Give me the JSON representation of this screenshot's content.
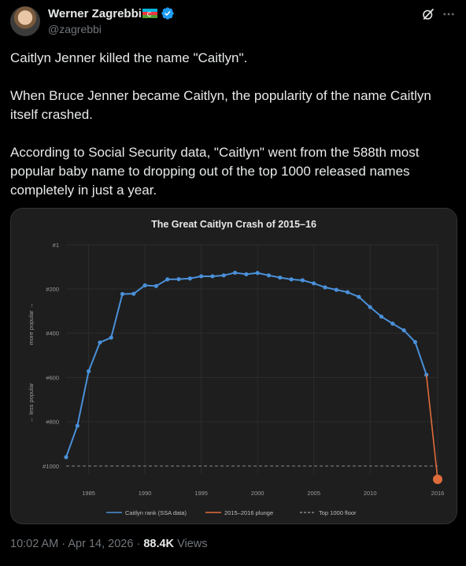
{
  "author": {
    "name": "Werner Zagrebbi",
    "handle": "@zagrebbi",
    "flag_icon": "azerbaijan-flag-icon",
    "verified_icon": "verified-badge-icon"
  },
  "header_icons": [
    "grok-icon",
    "more-icon"
  ],
  "post": {
    "paragraphs": [
      "Caitlyn Jenner killed the name \"Caitlyn\".",
      "When Bruce Jenner became Caitlyn, the popularity of the name Caitlyn itself crashed.",
      "According to Social Security data, \"Caitlyn\" went from the 588th most popular baby name to dropping out of the top 1000 released names completely in just a year."
    ]
  },
  "footer": {
    "time": "10:02 AM",
    "separator1": "·",
    "date": "Apr 14, 2026",
    "separator2": "·",
    "views_count": "88.4K",
    "views_label": "Views"
  },
  "colors": {
    "series_blue": "#4a90d9",
    "plunge_orange": "#e06c3c",
    "floor_gray": "#8a8a8a",
    "chart_bg": "#1e1e1e"
  },
  "chart_data": {
    "type": "line",
    "title": "The Great Caitlyn Crash of 2015–16",
    "ylabel_top": "more popular →",
    "ylabel_bottom": "← less popular",
    "y_reversed": true,
    "ylim": [
      1,
      1000
    ],
    "xlim": [
      1983,
      2016
    ],
    "y_ticks": [
      {
        "value": 1,
        "label": "#1"
      },
      {
        "value": 200,
        "label": "#200"
      },
      {
        "value": 400,
        "label": "#400"
      },
      {
        "value": 600,
        "label": "#600"
      },
      {
        "value": 800,
        "label": "#800"
      },
      {
        "value": 1000,
        "label": "#1000"
      }
    ],
    "x_ticks": [
      {
        "value": 1985,
        "label": "1985"
      },
      {
        "value": 1990,
        "label": "1990"
      },
      {
        "value": 1995,
        "label": "1995"
      },
      {
        "value": 2000,
        "label": "2000"
      },
      {
        "value": 2005,
        "label": "2005"
      },
      {
        "value": 2010,
        "label": "2010"
      },
      {
        "value": 2016,
        "label": "2016"
      }
    ],
    "grid": true,
    "legend_position": "bottom",
    "series": [
      {
        "name": "Caitlyn rank (SSA data)",
        "color": "#4a90d9",
        "x": [
          1983,
          1984,
          1985,
          1986,
          1987,
          1988,
          1989,
          1990,
          1991,
          1992,
          1993,
          1994,
          1995,
          1996,
          1997,
          1998,
          1999,
          2000,
          2001,
          2002,
          2003,
          2004,
          2005,
          2006,
          2007,
          2008,
          2009,
          2010,
          2011,
          2012,
          2013,
          2014,
          2015
        ],
        "y": [
          960,
          818,
          572,
          442,
          420,
          223,
          222,
          184,
          187,
          157,
          156,
          153,
          143,
          143,
          139,
          127,
          134,
          128,
          139,
          149,
          157,
          161,
          175,
          193,
          204,
          215,
          236,
          282,
          325,
          357,
          387,
          440,
          588
        ]
      },
      {
        "name": "2015–2016 plunge",
        "color": "#e06c3c",
        "x": [
          2015,
          2016
        ],
        "y": [
          588,
          1060
        ]
      },
      {
        "name": "Top 1000 floor",
        "color": "#8a8a8a",
        "dashed": true,
        "y_value": 1000
      }
    ]
  }
}
